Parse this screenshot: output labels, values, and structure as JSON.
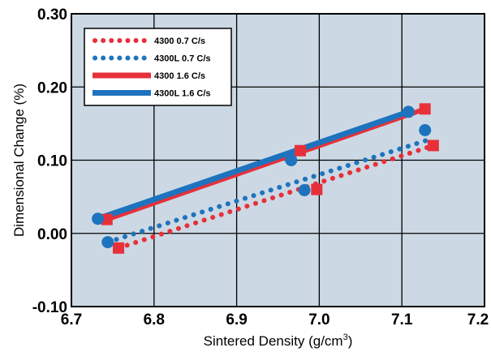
{
  "chart_data": {
    "type": "line",
    "title": "",
    "xlabel": "Sintered Density (g/cm",
    "xlabel_sup": "3",
    "xlabel_end": ")",
    "ylabel": "Dimensional Change (%)",
    "xlim": [
      6.7,
      7.2
    ],
    "ylim": [
      -0.1,
      0.3
    ],
    "x_ticks": [
      "6.7",
      "6.8",
      "6.9",
      "7.0",
      "7.1",
      "7.2"
    ],
    "y_ticks": [
      "-0.10",
      "0.00",
      "0.10",
      "0.20",
      "0.30"
    ],
    "grid": true,
    "plot_background": "#ccd9e4",
    "legend_position": "top-left",
    "series": [
      {
        "name": "4300 0.7 C/s",
        "color": "#e8303a",
        "style": "dotted",
        "marker": "square",
        "x": [
          6.757,
          6.997,
          7.138
        ],
        "y": [
          -0.02,
          0.06,
          0.12
        ],
        "trend": [
          [
            6.757,
            -0.02
          ],
          [
            7.138,
            0.12
          ]
        ]
      },
      {
        "name": "4300L 0.7 C/s",
        "color": "#1e73be",
        "style": "dotted",
        "marker": "circle",
        "x": [
          6.744,
          6.982,
          7.128
        ],
        "y": [
          -0.012,
          0.059,
          0.141
        ],
        "trend": [
          [
            6.744,
            -0.012
          ],
          [
            7.138,
            0.13
          ]
        ]
      },
      {
        "name": "4300 1.6 C/s",
        "color": "#e8303a",
        "style": "solid",
        "marker": "square",
        "x": [
          6.743,
          6.977,
          7.128
        ],
        "y": [
          0.019,
          0.113,
          0.17
        ],
        "trend": [
          [
            6.743,
            0.019
          ],
          [
            7.128,
            0.17
          ]
        ]
      },
      {
        "name": "4300L 1.6 C/s",
        "color": "#1e73be",
        "style": "solid",
        "marker": "circle",
        "x": [
          6.732,
          6.966,
          7.108
        ],
        "y": [
          0.02,
          0.1,
          0.166
        ],
        "trend": [
          [
            6.732,
            0.02
          ],
          [
            7.108,
            0.166
          ]
        ]
      }
    ]
  }
}
